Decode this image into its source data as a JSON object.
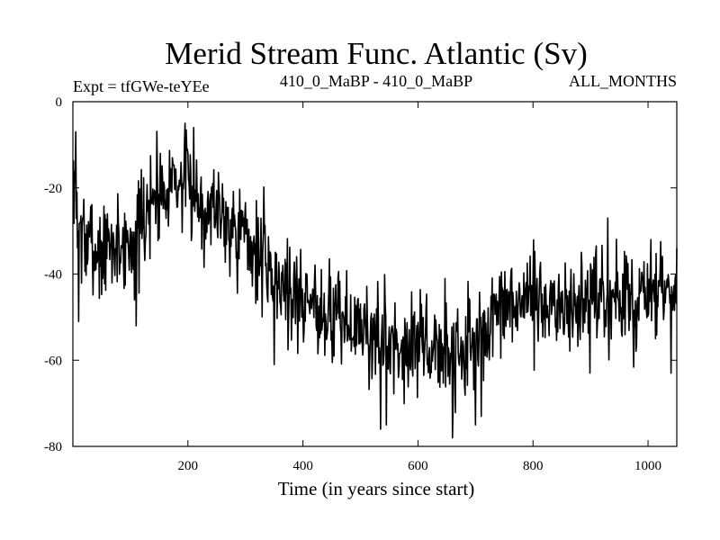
{
  "chart_data": {
    "type": "line",
    "title": "Merid Stream Func. Atlantic (Sv)",
    "subtitle_left": "Expt = tfGWe-teYEe",
    "subtitle_center": "410_0_MaBP - 410_0_MaBP",
    "subtitle_right": "ALL_MONTHS",
    "xlabel": "Time (in years since start)",
    "ylabel": "",
    "xlim": [
      0,
      1050
    ],
    "ylim": [
      -80,
      0
    ],
    "xticks": [
      200,
      400,
      600,
      800,
      1000
    ],
    "xtick_labels": [
      "200",
      "400",
      "600",
      "800",
      "1000"
    ],
    "yticks": [
      0,
      -20,
      -40,
      -60,
      -80
    ],
    "ytick_labels": [
      "0",
      "-20",
      "-40",
      "-60",
      "-80"
    ],
    "line_color": "#000000",
    "grid": false,
    "series": [
      {
        "name": "Merid Stream Func. Atlantic",
        "x_start": 1,
        "x_step": 1,
        "n": 1050,
        "anchors": [
          [
            0,
            -20
          ],
          [
            20,
            -33
          ],
          [
            50,
            -35
          ],
          [
            80,
            -33
          ],
          [
            110,
            -33
          ],
          [
            140,
            -22
          ],
          [
            170,
            -17
          ],
          [
            200,
            -20
          ],
          [
            230,
            -24
          ],
          [
            260,
            -25
          ],
          [
            290,
            -30
          ],
          [
            320,
            -35
          ],
          [
            350,
            -40
          ],
          [
            380,
            -44
          ],
          [
            420,
            -47
          ],
          [
            460,
            -50
          ],
          [
            500,
            -53
          ],
          [
            540,
            -55
          ],
          [
            580,
            -56
          ],
          [
            620,
            -57
          ],
          [
            660,
            -58
          ],
          [
            700,
            -56
          ],
          [
            740,
            -50
          ],
          [
            780,
            -46
          ],
          [
            820,
            -47
          ],
          [
            860,
            -48
          ],
          [
            900,
            -47
          ],
          [
            950,
            -46
          ],
          [
            1000,
            -46
          ],
          [
            1050,
            -45
          ]
        ],
        "noise_amplitude": 6,
        "seed": 7,
        "peaks": [
          [
            5,
            -7
          ],
          [
            195,
            -5
          ],
          [
            210,
            -6
          ],
          [
            930,
            -27
          ],
          [
            1005,
            -32
          ],
          [
            1050,
            -34
          ]
        ],
        "troughs": [
          [
            10,
            -51
          ],
          [
            110,
            -52
          ],
          [
            350,
            -61
          ],
          [
            535,
            -76
          ],
          [
            545,
            -75
          ],
          [
            660,
            -78
          ],
          [
            700,
            -75
          ],
          [
            710,
            -73
          ],
          [
            1040,
            -63
          ]
        ]
      }
    ]
  }
}
